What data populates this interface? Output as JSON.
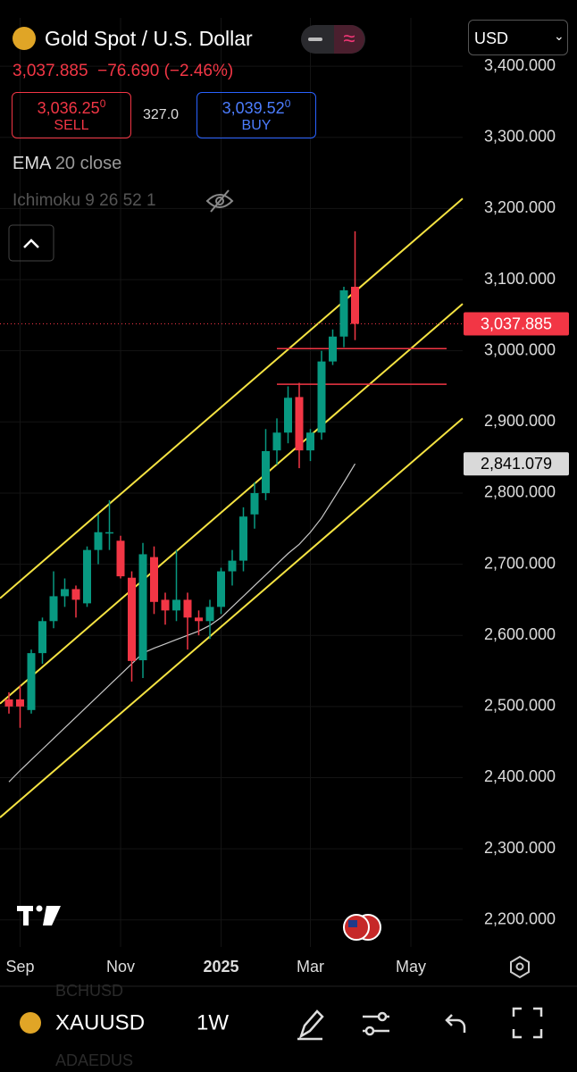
{
  "header": {
    "title": "Gold Spot / U.S. Dollar",
    "price": "3,037.885",
    "change": "−76.690",
    "change_pct": "(−2.46%)",
    "sell": {
      "price": "3,036.25",
      "digit": "0",
      "label": "SELL"
    },
    "spread": "327.0",
    "buy": {
      "price": "3,039.52",
      "digit": "0",
      "label": "BUY"
    },
    "indicators": {
      "ema": "EMA",
      "ema_params": "20 close",
      "ichimoku": "Ichimoku 9 26 52 1"
    },
    "currency": "USD"
  },
  "footer": {
    "symbol": "XAUUSD",
    "interval": "1W",
    "behind": [
      "BCHUSD",
      "ADAEDUS"
    ]
  },
  "chart_data": {
    "type": "candlestick",
    "open": [
      2510,
      2510,
      2495,
      2575,
      2620,
      2655,
      2665,
      2645,
      2720,
      2745,
      2733,
      2681,
      2565,
      2710,
      2650,
      2635,
      2650,
      2625,
      2620,
      2640,
      2690,
      2705,
      2770,
      2800,
      2860,
      2885,
      2935,
      2860,
      2885,
      2985,
      3020,
      3090
    ],
    "high": [
      2520,
      2530,
      2580,
      2625,
      2690,
      2680,
      2670,
      2725,
      2770,
      2790,
      2740,
      2690,
      2730,
      2725,
      2660,
      2720,
      2660,
      2635,
      2650,
      2695,
      2720,
      2780,
      2815,
      2890,
      2905,
      2950,
      2955,
      2890,
      3000,
      3030,
      3090,
      3168
    ],
    "low": [
      2490,
      2470,
      2490,
      2560,
      2610,
      2640,
      2625,
      2640,
      2700,
      2720,
      2680,
      2535,
      2540,
      2630,
      2615,
      2620,
      2580,
      2600,
      2595,
      2630,
      2670,
      2690,
      2750,
      2790,
      2840,
      2870,
      2835,
      2845,
      2875,
      2980,
      3005,
      3015
    ],
    "close": [
      2500,
      2500,
      2575,
      2620,
      2655,
      2665,
      2650,
      2720,
      2745,
      2745,
      2683,
      2564,
      2714,
      2647,
      2635,
      2650,
      2625,
      2620,
      2640,
      2690,
      2705,
      2767,
      2800,
      2859,
      2885,
      2934,
      2860,
      2885,
      2985,
      3020,
      3085,
      3037.885
    ],
    "up_color": "#089981",
    "down_color": "#f23645",
    "ema": {
      "color": "#c8c8c8",
      "values": [
        2394,
        2410,
        2425,
        2440,
        2455,
        2470,
        2485,
        2500,
        2515,
        2530,
        2545,
        2560,
        2575,
        2582,
        2588,
        2594,
        2600,
        2606,
        2614,
        2625,
        2640,
        2655,
        2670,
        2685,
        2700,
        2715,
        2728,
        2745,
        2765,
        2790,
        2815,
        2841.079
      ],
      "last_label": "2,841.079"
    },
    "last_price": {
      "value": 3037.885,
      "label": "3,037.885"
    },
    "channel": {
      "color": "#f5e342",
      "x": [
        -0.8,
        40.64
      ],
      "lines": [
        [
          2652,
          3214
        ],
        [
          2504,
          3066
        ],
        [
          2344,
          2905
        ]
      ]
    },
    "levels": {
      "color": "#f23645",
      "x": [
        24,
        39.2
      ],
      "values": [
        3003,
        2953
      ]
    },
    "xlim": [
      -0.8,
      40.64
    ],
    "ylim": [
      2162,
      3468
    ],
    "yticks": [
      {
        "value": 2200,
        "label": "2,200.000"
      },
      {
        "value": 2300,
        "label": "2,300.000"
      },
      {
        "value": 2400,
        "label": "2,400.000"
      },
      {
        "value": 2500,
        "label": "2,500.000"
      },
      {
        "value": 2600,
        "label": "2,600.000"
      },
      {
        "value": 2700,
        "label": "2,700.000"
      },
      {
        "value": 2800,
        "label": "2,800.000"
      },
      {
        "value": 2900,
        "label": "2,900.000"
      },
      {
        "value": 3000,
        "label": "3,000.000"
      },
      {
        "value": 3100,
        "label": "3,100.000"
      },
      {
        "value": 3200,
        "label": "3,200.000"
      },
      {
        "value": 3300,
        "label": "3,300.000"
      },
      {
        "value": 3400,
        "label": "3,400.000"
      }
    ],
    "xticks": [
      {
        "value": 1,
        "label": "Sep"
      },
      {
        "value": 10,
        "label": "Nov"
      },
      {
        "value": 19,
        "label": "2025"
      },
      {
        "value": 27,
        "label": "Mar"
      },
      {
        "value": 36,
        "label": "May"
      }
    ],
    "grid": true
  }
}
